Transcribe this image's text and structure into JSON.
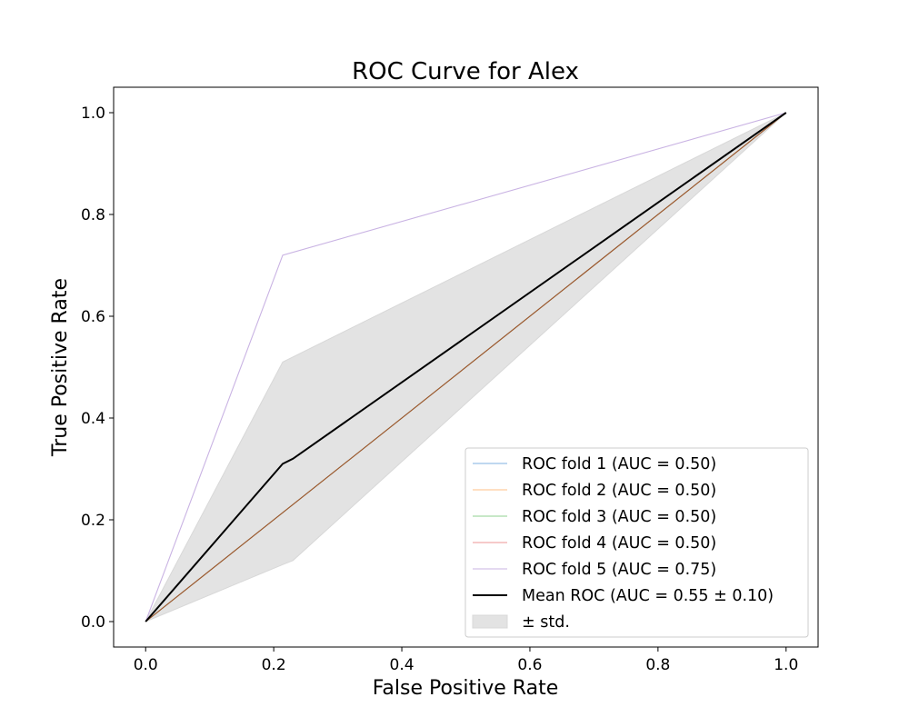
{
  "chart_data": {
    "type": "line",
    "title": "ROC Curve for Alex",
    "xlabel": "False Positive Rate",
    "ylabel": "True Positive Rate",
    "xlim": [
      -0.05,
      1.05
    ],
    "ylim": [
      -0.05,
      1.05
    ],
    "xticks": [
      "0.0",
      "0.2",
      "0.4",
      "0.6",
      "0.8",
      "1.0"
    ],
    "yticks": [
      "0.0",
      "0.2",
      "0.4",
      "0.6",
      "0.8",
      "1.0"
    ],
    "grid": false,
    "legend_position": "bottom-right",
    "series": [
      {
        "name": "ROC fold 1 (AUC = 0.50)",
        "color": "#7fb0e0",
        "x": [
          0,
          1
        ],
        "y": [
          0,
          1
        ]
      },
      {
        "name": "ROC fold 2 (AUC = 0.50)",
        "color": "#ffbf86",
        "x": [
          0,
          1
        ],
        "y": [
          0,
          1
        ]
      },
      {
        "name": "ROC fold 3 (AUC = 0.50)",
        "color": "#8fd18f",
        "x": [
          0,
          1
        ],
        "y": [
          0,
          1
        ]
      },
      {
        "name": "ROC fold 4 (AUC = 0.50)",
        "color": "#a0522d",
        "legend_color": "#ec9696",
        "x": [
          0,
          1
        ],
        "y": [
          0,
          1
        ]
      },
      {
        "name": "ROC fold 5 (AUC = 0.75)",
        "color": "#c9b3e3",
        "x": [
          0,
          0.214,
          1
        ],
        "y": [
          0,
          0.72,
          1
        ]
      },
      {
        "name": "Mean ROC (AUC = 0.55 ± 0.10)",
        "color": "#000000",
        "x": [
          0,
          0.214,
          0.23,
          1
        ],
        "y": [
          0,
          0.31,
          0.32,
          1
        ],
        "mean": true
      }
    ],
    "band": {
      "name": "± std.",
      "color": "#e3e3e3",
      "x": [
        0,
        0.214,
        0.23,
        1
      ],
      "upper": [
        0,
        0.51,
        0.52,
        1
      ],
      "lower": [
        0,
        0.112,
        0.12,
        1
      ]
    }
  }
}
